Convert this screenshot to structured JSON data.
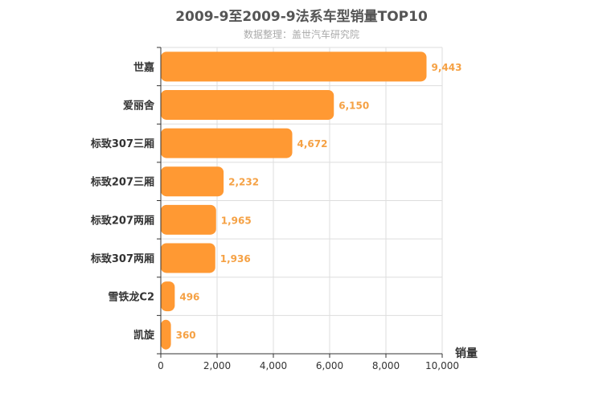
{
  "chart_data": {
    "type": "bar",
    "orientation": "horizontal",
    "title": "2009-9至2009-9法系车型销量TOP10",
    "subtitle": "数据整理：盖世汽车研究院",
    "xlabel": "销量",
    "ylabel": "",
    "categories": [
      "世嘉",
      "爱丽舍",
      "标致307三厢",
      "标致207三厢",
      "标致207两厢",
      "标致307两厢",
      "雪铁龙C2",
      "凯旋"
    ],
    "values": [
      9443,
      6150,
      4672,
      2232,
      1965,
      1936,
      496,
      360
    ],
    "value_labels": [
      "9,443",
      "6,150",
      "4,672",
      "2,232",
      "1,965",
      "1,936",
      "496",
      "360"
    ],
    "xlim": [
      0,
      10000
    ],
    "x_ticks": [
      0,
      2000,
      4000,
      6000,
      8000,
      10000
    ],
    "x_tick_labels": [
      "0",
      "2,000",
      "4,000",
      "6,000",
      "8,000",
      "10,000"
    ],
    "grid": true,
    "bar_color": "#ff9933"
  }
}
